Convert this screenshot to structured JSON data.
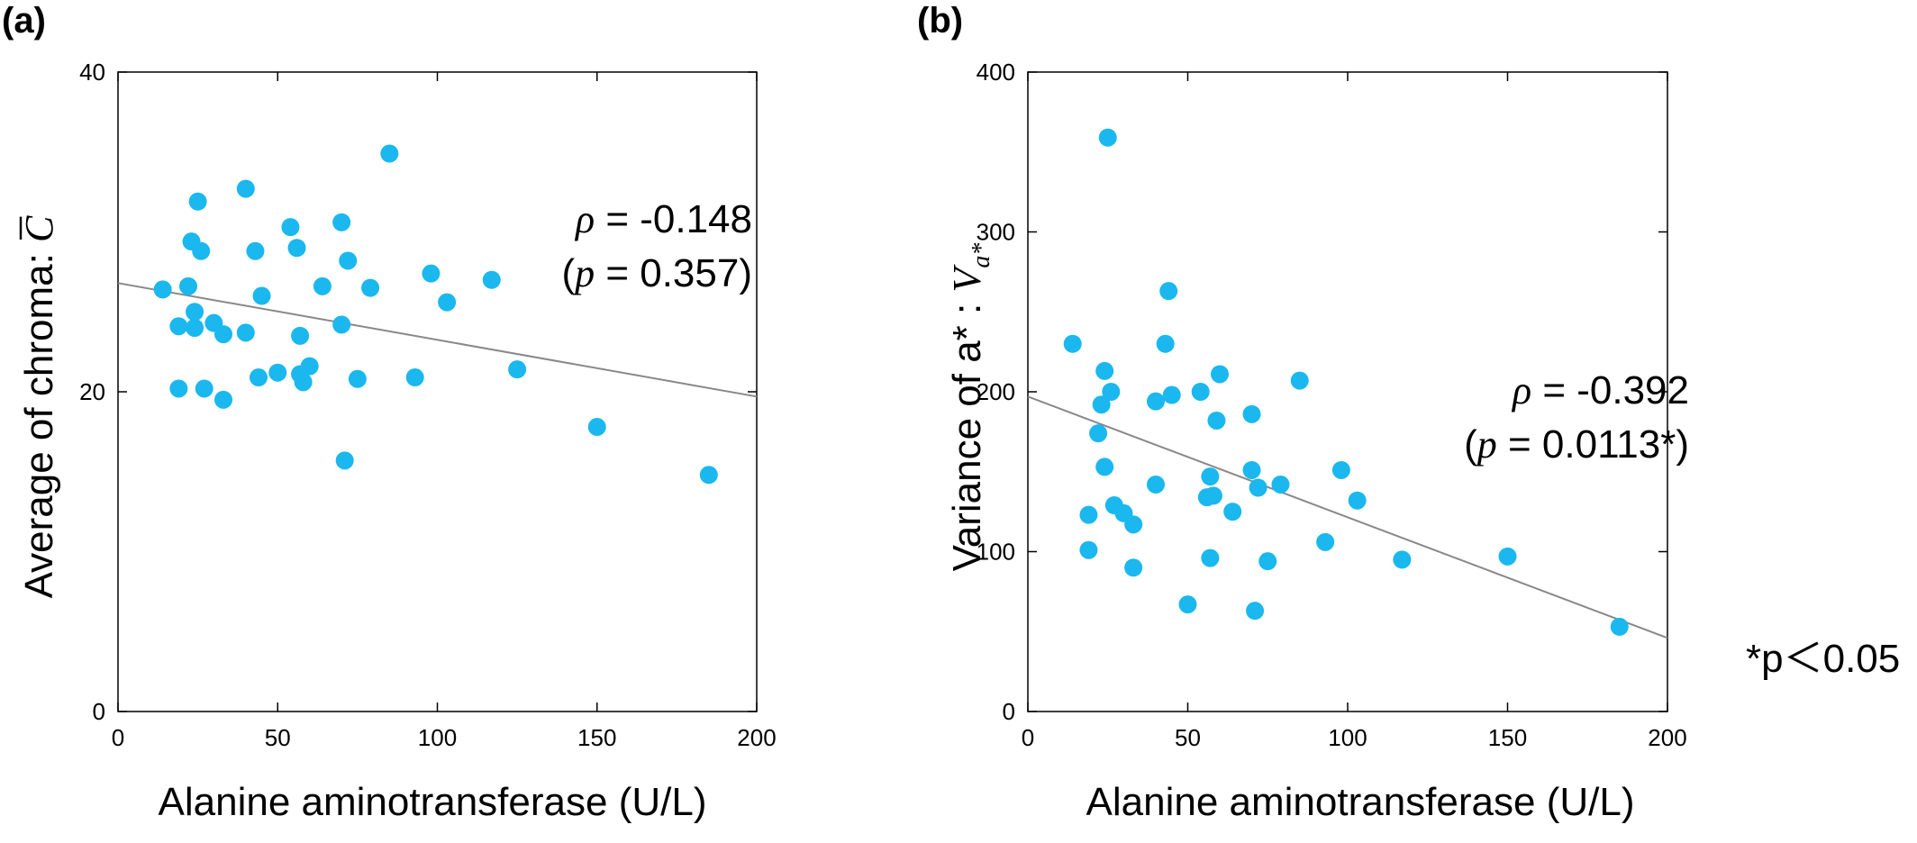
{
  "chart_data": [
    {
      "type": "scatter",
      "panel_label": "(a)",
      "xlabel": "Alanine aminotransferase (U/L)",
      "ylabel": "Average of chroma: ",
      "ylabel_symbol": "C",
      "xlim": [
        0,
        200
      ],
      "ylim": [
        0,
        40
      ],
      "xticks": [
        0,
        50,
        100,
        150,
        200
      ],
      "yticks": [
        0,
        20,
        40
      ],
      "grid": false,
      "point_color": "#1ab8ee",
      "line_color": "#888888",
      "annotation": {
        "rho_symbol": "ρ",
        "rho_text": " = -0.148",
        "p_open": "(",
        "p_symbol": "p",
        "p_text": " = 0.357)"
      },
      "regression": {
        "x": [
          0,
          200
        ],
        "y": [
          26.8,
          19.7
        ]
      },
      "points": [
        {
          "x": 14,
          "y": 26.4
        },
        {
          "x": 19,
          "y": 24.1
        },
        {
          "x": 19,
          "y": 20.2
        },
        {
          "x": 22,
          "y": 26.6
        },
        {
          "x": 23,
          "y": 29.4
        },
        {
          "x": 24,
          "y": 25.0
        },
        {
          "x": 24,
          "y": 24.0
        },
        {
          "x": 25,
          "y": 31.9
        },
        {
          "x": 26,
          "y": 28.8
        },
        {
          "x": 27,
          "y": 20.2
        },
        {
          "x": 30,
          "y": 24.3
        },
        {
          "x": 33,
          "y": 23.6
        },
        {
          "x": 33,
          "y": 19.5
        },
        {
          "x": 40,
          "y": 32.7
        },
        {
          "x": 40,
          "y": 23.7
        },
        {
          "x": 43,
          "y": 28.8
        },
        {
          "x": 44,
          "y": 20.9
        },
        {
          "x": 45,
          "y": 26.0
        },
        {
          "x": 50,
          "y": 21.2
        },
        {
          "x": 54,
          "y": 30.3
        },
        {
          "x": 56,
          "y": 29.0
        },
        {
          "x": 57,
          "y": 23.5
        },
        {
          "x": 57,
          "y": 21.1
        },
        {
          "x": 58,
          "y": 20.6
        },
        {
          "x": 60,
          "y": 21.6
        },
        {
          "x": 64,
          "y": 26.6
        },
        {
          "x": 70,
          "y": 30.6
        },
        {
          "x": 70,
          "y": 24.2
        },
        {
          "x": 71,
          "y": 15.7
        },
        {
          "x": 72,
          "y": 28.2
        },
        {
          "x": 75,
          "y": 20.8
        },
        {
          "x": 79,
          "y": 26.5
        },
        {
          "x": 85,
          "y": 34.9
        },
        {
          "x": 93,
          "y": 20.9
        },
        {
          "x": 98,
          "y": 27.4
        },
        {
          "x": 103,
          "y": 25.6
        },
        {
          "x": 117,
          "y": 27.0
        },
        {
          "x": 125,
          "y": 21.4
        },
        {
          "x": 150,
          "y": 17.8
        },
        {
          "x": 185,
          "y": 14.8
        }
      ]
    },
    {
      "type": "scatter",
      "panel_label": "(b)",
      "xlabel": "Alanine aminotransferase (U/L)",
      "ylabel": "Variance of a* : ",
      "ylabel_symbol": "V",
      "ylabel_subscript": "a*",
      "xlim": [
        0,
        200
      ],
      "ylim": [
        0,
        400
      ],
      "xticks": [
        0,
        50,
        100,
        150,
        200
      ],
      "yticks": [
        0,
        100,
        200,
        300,
        400
      ],
      "grid": false,
      "point_color": "#1ab8ee",
      "line_color": "#888888",
      "annotation": {
        "rho_symbol": "ρ",
        "rho_text": " = -0.392",
        "p_open": "(",
        "p_symbol": "p",
        "p_text": " = 0.0113*)"
      },
      "footnote": "*p＜0.05",
      "regression": {
        "x": [
          0,
          200
        ],
        "y": [
          197,
          46
        ]
      },
      "points": [
        {
          "x": 14,
          "y": 230
        },
        {
          "x": 19,
          "y": 123
        },
        {
          "x": 19,
          "y": 101
        },
        {
          "x": 22,
          "y": 174
        },
        {
          "x": 23,
          "y": 192
        },
        {
          "x": 24,
          "y": 213
        },
        {
          "x": 24,
          "y": 153
        },
        {
          "x": 25,
          "y": 359
        },
        {
          "x": 26,
          "y": 200
        },
        {
          "x": 27,
          "y": 129
        },
        {
          "x": 30,
          "y": 124
        },
        {
          "x": 33,
          "y": 117
        },
        {
          "x": 33,
          "y": 90
        },
        {
          "x": 40,
          "y": 194
        },
        {
          "x": 40,
          "y": 142
        },
        {
          "x": 43,
          "y": 230
        },
        {
          "x": 44,
          "y": 263
        },
        {
          "x": 45,
          "y": 198
        },
        {
          "x": 50,
          "y": 67
        },
        {
          "x": 54,
          "y": 200
        },
        {
          "x": 56,
          "y": 134
        },
        {
          "x": 57,
          "y": 96
        },
        {
          "x": 57,
          "y": 147
        },
        {
          "x": 58,
          "y": 135
        },
        {
          "x": 59,
          "y": 182
        },
        {
          "x": 60,
          "y": 211
        },
        {
          "x": 64,
          "y": 125
        },
        {
          "x": 70,
          "y": 186
        },
        {
          "x": 70,
          "y": 151
        },
        {
          "x": 71,
          "y": 63
        },
        {
          "x": 72,
          "y": 140
        },
        {
          "x": 75,
          "y": 94
        },
        {
          "x": 79,
          "y": 142
        },
        {
          "x": 85,
          "y": 207
        },
        {
          "x": 93,
          "y": 106
        },
        {
          "x": 98,
          "y": 151
        },
        {
          "x": 103,
          "y": 132
        },
        {
          "x": 117,
          "y": 95
        },
        {
          "x": 150,
          "y": 97
        },
        {
          "x": 185,
          "y": 53
        }
      ]
    }
  ]
}
